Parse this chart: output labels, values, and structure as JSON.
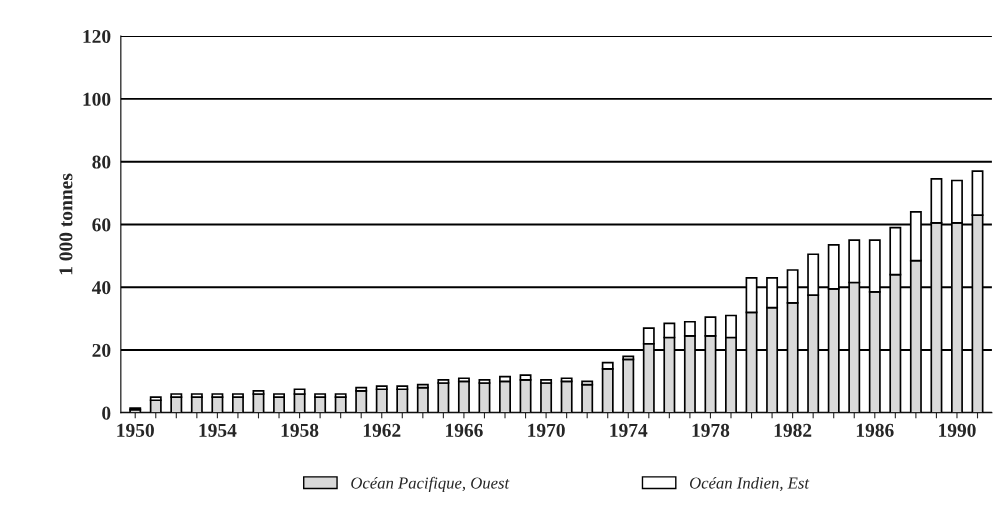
{
  "chart_data": {
    "type": "bar",
    "stacked": true,
    "ylabel": "1 000 tonnes",
    "categories": [
      "1950",
      null,
      null,
      null,
      "1954",
      null,
      null,
      null,
      "1958",
      null,
      null,
      null,
      "1962",
      null,
      null,
      null,
      "1966",
      null,
      null,
      null,
      "1970",
      null,
      null,
      null,
      "1974",
      null,
      null,
      null,
      "1978",
      null,
      null,
      null,
      "1982",
      null,
      null,
      null,
      "1986",
      null,
      null,
      null,
      "1990",
      null
    ],
    "series": [
      {
        "name": "Océan Pacifique, Ouest",
        "color": "#d9d9d9",
        "values": [
          1,
          4,
          5,
          5,
          5,
          5,
          6,
          5,
          6,
          5,
          5,
          7,
          7.5,
          7.5,
          8,
          9.5,
          10,
          9.5,
          10,
          10.5,
          9.5,
          10,
          9,
          14,
          17,
          22,
          24,
          24.5,
          24.5,
          24,
          32,
          33.5,
          35,
          37.5,
          39.5,
          41.5,
          38.5,
          44,
          48.5,
          60.5,
          60.5,
          63
        ]
      },
      {
        "name": "Océan Indien, Est",
        "color": "#ffffff",
        "values": [
          0.5,
          1,
          1,
          1,
          1,
          1,
          1,
          1,
          1.5,
          1,
          1,
          1,
          1,
          1,
          1,
          1,
          1,
          1,
          1.5,
          1.5,
          1,
          1,
          1,
          2,
          1,
          5,
          4.5,
          4.5,
          6,
          7,
          11,
          9.5,
          10.5,
          13,
          14,
          13.5,
          16.5,
          15,
          15.5,
          14,
          13.5,
          14
        ]
      }
    ],
    "ylim": [
      0,
      120
    ],
    "yticks": [
      0,
      20,
      40,
      60,
      80,
      100,
      120
    ],
    "grid": "y",
    "legend": "bottom"
  }
}
